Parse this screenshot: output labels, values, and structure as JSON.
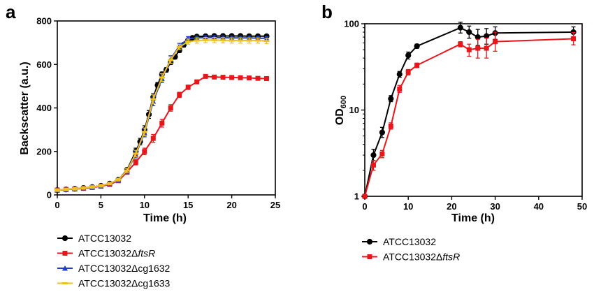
{
  "chart_data": [
    {
      "panel": "a",
      "type": "line",
      "xlabel": "Time (h)",
      "ylabel": "Backscatter (a.u.)",
      "xlim": [
        0,
        25
      ],
      "ylim": [
        0,
        800
      ],
      "xticks": [
        0,
        5,
        10,
        15,
        20,
        25
      ],
      "yticks": [
        0,
        200,
        400,
        600,
        800
      ],
      "grid": false,
      "legend_position": "bottom-left",
      "series": [
        {
          "name": "ATCC13032",
          "name_suffix": "",
          "color": "#000000",
          "marker": "circle",
          "x": [
            0,
            1,
            2,
            3,
            4,
            5,
            6,
            7,
            8,
            9,
            9.5,
            10,
            10.5,
            11,
            11.5,
            12,
            12.5,
            13,
            13.5,
            14,
            14.5,
            15,
            15.5,
            16,
            17,
            18,
            19,
            20,
            21,
            22,
            23,
            24
          ],
          "y": [
            22,
            25,
            28,
            32,
            36,
            42,
            52,
            70,
            115,
            200,
            245,
            300,
            370,
            450,
            505,
            555,
            575,
            610,
            635,
            665,
            690,
            712,
            722,
            728,
            730,
            731,
            731,
            731,
            731,
            730,
            730,
            730
          ],
          "err": [
            6,
            6,
            6,
            6,
            6,
            6,
            6,
            6,
            10,
            15,
            15,
            18,
            18,
            15,
            12,
            10,
            10,
            10,
            10,
            10,
            10,
            8,
            8,
            6,
            6,
            6,
            6,
            6,
            6,
            6,
            6,
            6
          ]
        },
        {
          "name": "ATCC13032",
          "name_suffix": "ftsR",
          "color": "#e8161b",
          "marker": "square",
          "x": [
            0,
            1,
            2,
            3,
            4,
            5,
            6,
            7,
            8,
            9,
            10,
            11,
            12,
            13,
            14,
            15,
            16,
            17,
            18,
            19,
            20,
            21,
            22,
            23,
            24
          ],
          "y": [
            22,
            25,
            27,
            30,
            34,
            40,
            48,
            65,
            105,
            150,
            200,
            260,
            330,
            400,
            460,
            495,
            520,
            545,
            542,
            541,
            540,
            539,
            538,
            536,
            535
          ],
          "err": [
            5,
            5,
            5,
            5,
            5,
            5,
            6,
            6,
            10,
            12,
            15,
            18,
            18,
            15,
            12,
            10,
            8,
            6,
            6,
            6,
            6,
            6,
            6,
            6,
            6
          ]
        },
        {
          "name": "ATCC13032",
          "name_suffix": "cg1632",
          "color": "#1f3fbf",
          "marker": "triangle",
          "x": [
            0,
            1,
            2,
            3,
            4,
            5,
            6,
            7,
            8,
            9,
            10,
            11,
            12,
            13,
            14,
            15,
            16,
            17,
            18,
            19,
            20,
            21,
            22,
            23,
            24
          ],
          "y": [
            22,
            25,
            28,
            32,
            36,
            42,
            52,
            70,
            110,
            185,
            285,
            430,
            535,
            625,
            685,
            718,
            722,
            724,
            724,
            723,
            722,
            722,
            722,
            721,
            720
          ],
          "err": [
            6,
            6,
            6,
            6,
            6,
            6,
            6,
            6,
            10,
            15,
            18,
            20,
            18,
            15,
            12,
            10,
            8,
            8,
            8,
            8,
            8,
            8,
            8,
            8,
            8
          ]
        },
        {
          "name": "ATCC13032",
          "name_suffix": "cg1633",
          "color": "#f0c020",
          "marker": "dash",
          "x": [
            0,
            1,
            2,
            3,
            4,
            5,
            6,
            7,
            8,
            9,
            10,
            11,
            12,
            13,
            14,
            15,
            16,
            17,
            18,
            19,
            20,
            21,
            22,
            23,
            24
          ],
          "y": [
            22,
            25,
            28,
            32,
            36,
            42,
            52,
            70,
            112,
            190,
            290,
            440,
            540,
            620,
            680,
            705,
            710,
            712,
            712,
            711,
            710,
            710,
            710,
            710,
            708
          ],
          "err": [
            6,
            6,
            6,
            6,
            6,
            6,
            6,
            6,
            10,
            15,
            18,
            20,
            18,
            15,
            12,
            12,
            12,
            12,
            12,
            12,
            12,
            12,
            12,
            12,
            12
          ]
        }
      ]
    },
    {
      "panel": "b",
      "type": "line",
      "xlabel": "Time (h)",
      "ylabel": "OD",
      "ylabel_subscript": "600",
      "xlim": [
        0,
        50
      ],
      "ylim": [
        1,
        100
      ],
      "yscale": "log",
      "xticks": [
        0,
        10,
        20,
        30,
        40,
        50
      ],
      "yticks": [
        1,
        10,
        100
      ],
      "grid": false,
      "legend_position": "bottom-left",
      "series": [
        {
          "name": "ATCC13032",
          "name_suffix": "",
          "color": "#000000",
          "marker": "circle",
          "x": [
            0,
            2,
            4,
            6,
            8,
            10,
            12,
            22,
            24,
            26,
            28,
            30,
            48
          ],
          "y": [
            1.0,
            3.0,
            5.5,
            13.5,
            26,
            43,
            55,
            90,
            80,
            70,
            72,
            78,
            80
          ],
          "err_lo": [
            0,
            0.4,
            0.7,
            1,
            2,
            4,
            3,
            12,
            12,
            14,
            14,
            12,
            10
          ],
          "err_hi": [
            0,
            0.5,
            0.8,
            1.2,
            2,
            4,
            3,
            14,
            14,
            16,
            16,
            14,
            12
          ]
        },
        {
          "name": "ATCC13032",
          "name_suffix": "ftsR",
          "color": "#e8161b",
          "marker": "square",
          "x": [
            0,
            2,
            4,
            6,
            8,
            10,
            12,
            22,
            24,
            26,
            28,
            30,
            48
          ],
          "y": [
            1.0,
            2.3,
            3.1,
            6.5,
            17.5,
            27.5,
            33,
            58,
            50,
            52,
            52,
            62,
            67
          ],
          "err_lo": [
            0,
            0.3,
            0.3,
            0.5,
            1.5,
            2,
            2,
            4,
            8,
            12,
            12,
            14,
            10
          ],
          "err_hi": [
            0,
            0.3,
            0.3,
            0.6,
            1.8,
            2,
            2,
            4,
            8,
            14,
            16,
            18,
            12
          ]
        }
      ]
    }
  ]
}
